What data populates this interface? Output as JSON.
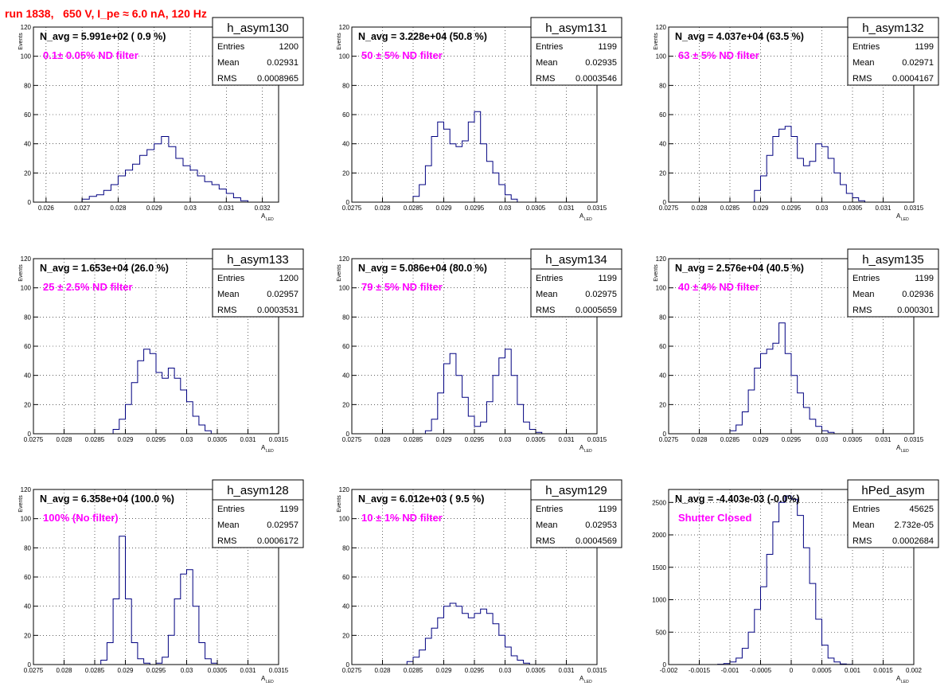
{
  "suptitle": "run 1838,   650 V, I_pe ≈ 6.0 nA, 120 Hz",
  "colors": {
    "title": "#ff0000",
    "annotation": "#ff00ff",
    "histogram": "#000080",
    "frame": "#000000",
    "grid": "#000000"
  },
  "chart_data": [
    {
      "type": "histogram",
      "name": "h_asym130",
      "xlabel": "A",
      "xlabel_sub": "LED",
      "ylabel": "Events",
      "nav": "N_avg = 5.991e+02 ( 0.9 %)",
      "filter": "0.1± 0.05% ND filter",
      "stats": {
        "Entries": "1200",
        "Mean": "0.02931",
        "RMS": "0.0008965"
      },
      "xlim": [
        0.02565,
        0.03245
      ],
      "ylim": [
        0,
        120
      ],
      "grid": true,
      "xticks": [
        "0.026",
        "0.027",
        "0.028",
        "0.029",
        "0.03",
        "0.031",
        "0.032"
      ],
      "xtick_vals": [
        0.026,
        0.027,
        0.028,
        0.029,
        0.03,
        0.031,
        0.032
      ],
      "yticks": [
        0,
        20,
        40,
        60,
        80,
        100,
        120
      ],
      "x": [
        0.0271,
        0.0273,
        0.0275,
        0.0277,
        0.0279,
        0.0281,
        0.0283,
        0.0285,
        0.0287,
        0.0289,
        0.0291,
        0.0293,
        0.0295,
        0.0297,
        0.0299,
        0.0301,
        0.0303,
        0.0305,
        0.0307,
        0.0309,
        0.0311,
        0.0313,
        0.0315
      ],
      "values": [
        2,
        4,
        5,
        8,
        12,
        18,
        22,
        26,
        32,
        36,
        40,
        45,
        38,
        30,
        25,
        22,
        18,
        14,
        12,
        9,
        6,
        3,
        1
      ]
    },
    {
      "type": "histogram",
      "name": "h_asym131",
      "xlabel": "A",
      "xlabel_sub": "LED",
      "ylabel": "Events",
      "nav": "N_avg = 3.228e+04 (50.8 %)",
      "filter": "50 ± 5% ND filter",
      "stats": {
        "Entries": "1199",
        "Mean": "0.02935",
        "RMS": "0.0003546"
      },
      "xlim": [
        0.0275,
        0.0315
      ],
      "ylim": [
        0,
        120
      ],
      "grid": true,
      "xticks": [
        "0.0275",
        "0.028",
        "0.0285",
        "0.029",
        "0.0295",
        "0.03",
        "0.0305",
        "0.031",
        "0.0315"
      ],
      "xtick_vals": [
        0.0275,
        0.028,
        0.0285,
        0.029,
        0.0295,
        0.03,
        0.0305,
        0.031,
        0.0315
      ],
      "yticks": [
        0,
        20,
        40,
        60,
        80,
        100,
        120
      ],
      "x": [
        0.02855,
        0.02865,
        0.02875,
        0.02885,
        0.02895,
        0.02905,
        0.02915,
        0.02925,
        0.02935,
        0.02945,
        0.02955,
        0.02965,
        0.02975,
        0.02985,
        0.02995,
        0.03005,
        0.03015
      ],
      "values": [
        4,
        12,
        25,
        45,
        55,
        50,
        40,
        38,
        42,
        55,
        62,
        40,
        28,
        20,
        12,
        5,
        2
      ]
    },
    {
      "type": "histogram",
      "name": "h_asym132",
      "xlabel": "A",
      "xlabel_sub": "LED",
      "ylabel": "Events",
      "nav": "N_avg = 4.037e+04 (63.5 %)",
      "filter": "63 ± 5% ND filter",
      "stats": {
        "Entries": "1199",
        "Mean": "0.02971",
        "RMS": "0.0004167"
      },
      "xlim": [
        0.0275,
        0.0315
      ],
      "ylim": [
        0,
        120
      ],
      "grid": true,
      "xticks": [
        "0.0275",
        "0.028",
        "0.0285",
        "0.029",
        "0.0295",
        "0.03",
        "0.0305",
        "0.031",
        "0.0315"
      ],
      "xtick_vals": [
        0.0275,
        0.028,
        0.0285,
        0.029,
        0.0295,
        0.03,
        0.0305,
        0.031,
        0.0315
      ],
      "yticks": [
        0,
        20,
        40,
        60,
        80,
        100,
        120
      ],
      "x": [
        0.02895,
        0.02905,
        0.02915,
        0.02925,
        0.02935,
        0.02945,
        0.02955,
        0.02965,
        0.02975,
        0.02985,
        0.02995,
        0.03005,
        0.03015,
        0.03025,
        0.03035,
        0.03045,
        0.03055,
        0.03065
      ],
      "values": [
        8,
        18,
        32,
        45,
        50,
        52,
        45,
        30,
        25,
        28,
        40,
        38,
        30,
        20,
        12,
        6,
        3,
        1
      ]
    },
    {
      "type": "histogram",
      "name": "h_asym133",
      "xlabel": "A",
      "xlabel_sub": "LED",
      "ylabel": "Events",
      "nav": "N_avg = 1.653e+04 (26.0 %)",
      "filter": "25 ± 2.5% ND filter",
      "stats": {
        "Entries": "1200",
        "Mean": "0.02957",
        "RMS": "0.0003531"
      },
      "xlim": [
        0.0275,
        0.0315
      ],
      "ylim": [
        0,
        120
      ],
      "grid": true,
      "xticks": [
        "0.0275",
        "0.028",
        "0.0285",
        "0.029",
        "0.0295",
        "0.03",
        "0.0305",
        "0.031",
        "0.0315"
      ],
      "xtick_vals": [
        0.0275,
        0.028,
        0.0285,
        0.029,
        0.0295,
        0.03,
        0.0305,
        0.031,
        0.0315
      ],
      "yticks": [
        0,
        20,
        40,
        60,
        80,
        100,
        120
      ],
      "x": [
        0.02885,
        0.02895,
        0.02905,
        0.02915,
        0.02925,
        0.02935,
        0.02945,
        0.02955,
        0.02965,
        0.02975,
        0.02985,
        0.02995,
        0.03005,
        0.03015,
        0.03025,
        0.03035
      ],
      "values": [
        3,
        10,
        20,
        35,
        50,
        58,
        55,
        42,
        38,
        45,
        38,
        30,
        22,
        12,
        6,
        2
      ]
    },
    {
      "type": "histogram",
      "name": "h_asym134",
      "xlabel": "A",
      "xlabel_sub": "LED",
      "ylabel": "Events",
      "nav": "N_avg = 5.086e+04 (80.0 %)",
      "filter": "79 ± 5% ND filter",
      "stats": {
        "Entries": "1199",
        "Mean": "0.02975",
        "RMS": "0.0005659"
      },
      "xlim": [
        0.0275,
        0.0315
      ],
      "ylim": [
        0,
        120
      ],
      "grid": true,
      "xticks": [
        "0.0275",
        "0.028",
        "0.0285",
        "0.029",
        "0.0295",
        "0.03",
        "0.0305",
        "0.031",
        "0.0315"
      ],
      "xtick_vals": [
        0.0275,
        0.028,
        0.0285,
        0.029,
        0.0295,
        0.03,
        0.0305,
        0.031,
        0.0315
      ],
      "yticks": [
        0,
        20,
        40,
        60,
        80,
        100,
        120
      ],
      "x": [
        0.02875,
        0.02885,
        0.02895,
        0.02905,
        0.02915,
        0.02925,
        0.02935,
        0.02945,
        0.02955,
        0.02965,
        0.02975,
        0.02985,
        0.02995,
        0.03005,
        0.03015,
        0.03025,
        0.03035,
        0.03045,
        0.03055,
        0.03065
      ],
      "values": [
        2,
        10,
        28,
        48,
        55,
        40,
        25,
        12,
        5,
        8,
        22,
        40,
        52,
        58,
        40,
        20,
        8,
        3,
        1,
        0
      ]
    },
    {
      "type": "histogram",
      "name": "h_asym135",
      "xlabel": "A",
      "xlabel_sub": "LED",
      "ylabel": "Events",
      "nav": "N_avg = 2.576e+04 (40.5 %)",
      "filter": "40 ± 4% ND filter",
      "stats": {
        "Entries": "1199",
        "Mean": "0.02936",
        "RMS": "0.000301"
      },
      "xlim": [
        0.0275,
        0.0315
      ],
      "ylim": [
        0,
        120
      ],
      "grid": true,
      "xticks": [
        "0.0275",
        "0.028",
        "0.0285",
        "0.029",
        "0.0295",
        "0.03",
        "0.0305",
        "0.031",
        "0.0315"
      ],
      "xtick_vals": [
        0.0275,
        0.028,
        0.0285,
        0.029,
        0.0295,
        0.03,
        0.0305,
        0.031,
        0.0315
      ],
      "yticks": [
        0,
        20,
        40,
        60,
        80,
        100,
        120
      ],
      "x": [
        0.02855,
        0.02865,
        0.02875,
        0.02885,
        0.02895,
        0.02905,
        0.02915,
        0.02925,
        0.02935,
        0.02945,
        0.02955,
        0.02965,
        0.02975,
        0.02985,
        0.02995,
        0.03005,
        0.03015
      ],
      "values": [
        2,
        6,
        15,
        30,
        45,
        55,
        58,
        62,
        76,
        55,
        40,
        28,
        18,
        10,
        5,
        2,
        1
      ]
    },
    {
      "type": "histogram",
      "name": "h_asym128",
      "xlabel": "A",
      "xlabel_sub": "LED",
      "ylabel": "Events",
      "nav": "N_avg = 6.358e+04 (100.0 %)",
      "filter": "100% (No filter)",
      "stats": {
        "Entries": "1199",
        "Mean": "0.02957",
        "RMS": "0.0006172"
      },
      "xlim": [
        0.0275,
        0.0315
      ],
      "ylim": [
        0,
        120
      ],
      "grid": true,
      "xticks": [
        "0.0275",
        "0.028",
        "0.0285",
        "0.029",
        "0.0295",
        "0.03",
        "0.0305",
        "0.031",
        "0.0315"
      ],
      "xtick_vals": [
        0.0275,
        0.028,
        0.0285,
        0.029,
        0.0295,
        0.03,
        0.0305,
        0.031,
        0.0315
      ],
      "yticks": [
        0,
        20,
        40,
        60,
        80,
        100,
        120
      ],
      "x": [
        0.02865,
        0.02875,
        0.02885,
        0.02895,
        0.02905,
        0.02915,
        0.02925,
        0.02935,
        0.02945,
        0.02955,
        0.02965,
        0.02975,
        0.02985,
        0.02995,
        0.03005,
        0.03015,
        0.03025,
        0.03035,
        0.03045,
        0.03055,
        0.03065
      ],
      "values": [
        3,
        15,
        45,
        88,
        45,
        15,
        4,
        1,
        0,
        1,
        5,
        20,
        45,
        62,
        65,
        40,
        15,
        4,
        1,
        0,
        0
      ]
    },
    {
      "type": "histogram",
      "name": "h_asym129",
      "xlabel": "A",
      "xlabel_sub": "LED",
      "ylabel": "Events",
      "nav": "N_avg = 6.012e+03 ( 9.5 %)",
      "filter": "10 ± 1% ND filter",
      "stats": {
        "Entries": "1199",
        "Mean": "0.02953",
        "RMS": "0.0004569"
      },
      "xlim": [
        0.0275,
        0.0315
      ],
      "ylim": [
        0,
        120
      ],
      "grid": true,
      "xticks": [
        "0.0275",
        "0.028",
        "0.0285",
        "0.029",
        "0.0295",
        "0.03",
        "0.0305",
        "0.031",
        "0.0315"
      ],
      "xtick_vals": [
        0.0275,
        0.028,
        0.0285,
        0.029,
        0.0295,
        0.03,
        0.0305,
        0.031,
        0.0315
      ],
      "yticks": [
        0,
        20,
        40,
        60,
        80,
        100,
        120
      ],
      "x": [
        0.02845,
        0.02855,
        0.02865,
        0.02875,
        0.02885,
        0.02895,
        0.02905,
        0.02915,
        0.02925,
        0.02935,
        0.02945,
        0.02955,
        0.02965,
        0.02975,
        0.02985,
        0.02995,
        0.03005,
        0.03015,
        0.03025,
        0.03035
      ],
      "values": [
        2,
        5,
        10,
        18,
        25,
        32,
        40,
        42,
        40,
        35,
        32,
        35,
        38,
        35,
        28,
        20,
        12,
        6,
        3,
        1
      ]
    },
    {
      "type": "histogram",
      "name": "hPed_asym",
      "xlabel": "A",
      "xlabel_sub": "LED",
      "ylabel": "",
      "nav": "N_avg = -4.403e-03 (-0.0%)",
      "filter": "Shutter Closed",
      "stats": {
        "Entries": "45625",
        "Mean": "2.732e-05",
        "RMS": "0.0002684"
      },
      "xlim": [
        -0.002,
        0.002
      ],
      "ylim": [
        0,
        2700
      ],
      "grid": true,
      "xticks": [
        "-0.002",
        "-0.0015",
        "-0.001",
        "-0.0005",
        "0",
        "0.0005",
        "0.001",
        "0.0015",
        "0.002"
      ],
      "xtick_vals": [
        -0.002,
        -0.0015,
        -0.001,
        -0.0005,
        0,
        0.0005,
        0.001,
        0.0015,
        0.002
      ],
      "yticks": [
        0,
        500,
        1000,
        1500,
        2000,
        2500
      ],
      "x": [
        -0.00115,
        -0.00105,
        -0.00095,
        -0.00085,
        -0.00075,
        -0.00065,
        -0.00055,
        -0.00045,
        -0.00035,
        -0.00025,
        -0.00015,
        -5e-05,
        5e-05,
        0.00015,
        0.00025,
        0.00035,
        0.00045,
        0.00055,
        0.00065,
        0.00075,
        0.00085,
        0.00095
      ],
      "values": [
        5,
        15,
        40,
        100,
        250,
        500,
        850,
        1200,
        1700,
        2200,
        2500,
        2600,
        2550,
        2300,
        1800,
        1250,
        700,
        300,
        100,
        40,
        10,
        3
      ]
    }
  ]
}
